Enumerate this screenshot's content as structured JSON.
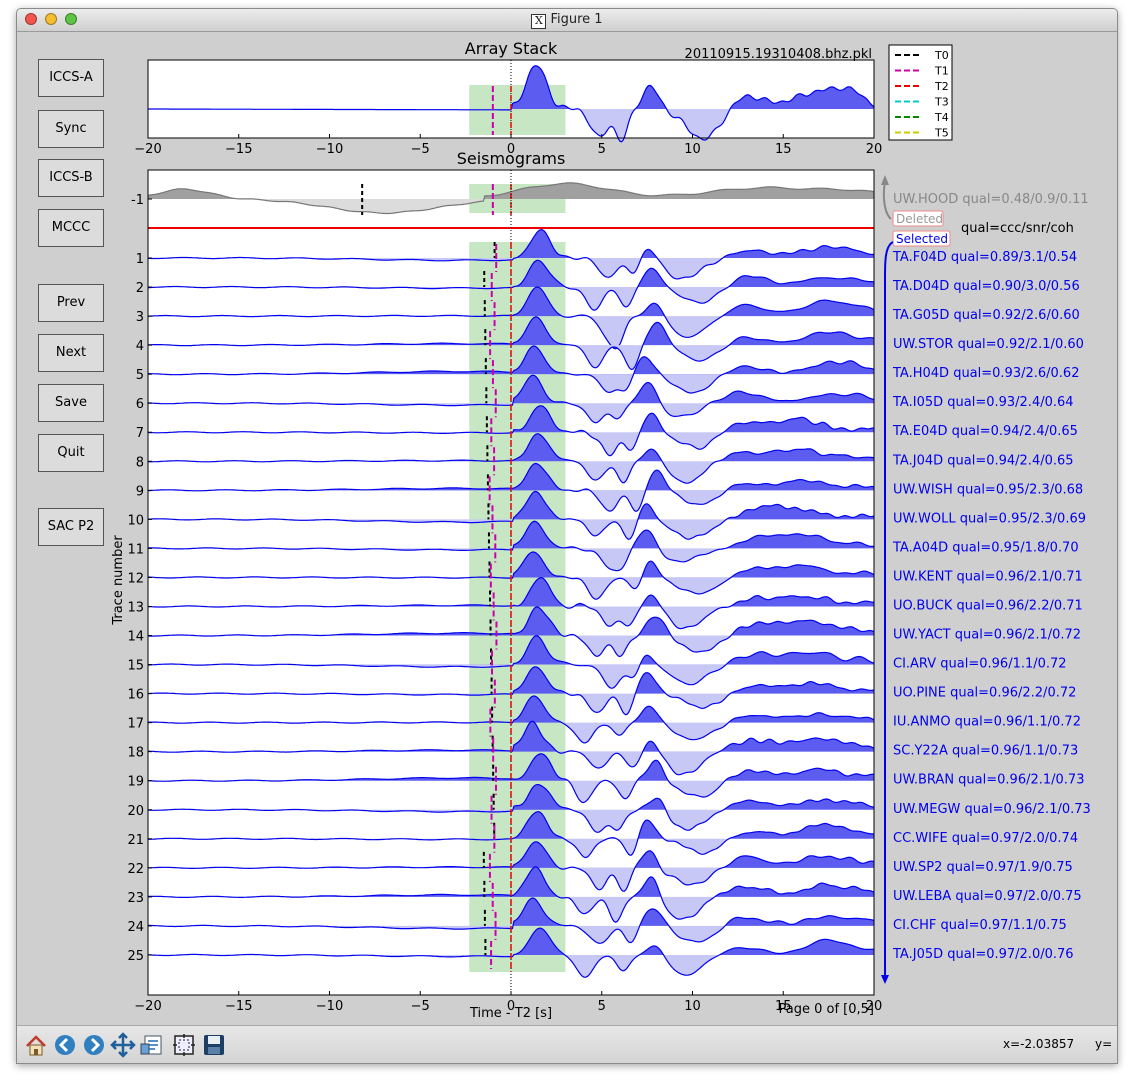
{
  "window": {
    "title": "Figure 1"
  },
  "buttons": [
    {
      "label": "ICCS-A"
    },
    {
      "label": "Sync"
    },
    {
      "label": "ICCS-B"
    },
    {
      "label": "MCCC"
    },
    {
      "label": "Prev"
    },
    {
      "label": "Next"
    },
    {
      "label": "Save"
    },
    {
      "label": "Quit"
    },
    {
      "label": "SAC P2"
    }
  ],
  "stack": {
    "title": "Array Stack",
    "filename": "20110915.19310408.bhz.pkl",
    "xticks": [
      "−20",
      "−15",
      "−10",
      "−5",
      "0",
      "5",
      "10",
      "15",
      "20"
    ]
  },
  "legend": [
    "T0",
    "T1",
    "T2",
    "T3",
    "T4",
    "T5"
  ],
  "seismograms": {
    "title": "Seismograms",
    "ylabel": "Trace number",
    "xlabel": "Time - T2 [s]",
    "page": "Page 0 of [0,5]",
    "xticks": [
      "−20",
      "−15",
      "−10",
      "−5",
      "0",
      "5",
      "10",
      "15",
      "20"
    ],
    "deleted_label": "Deleted",
    "selected_label": "Selected",
    "qual_header": "qual=ccc/snr/coh",
    "deleted": [
      {
        "num": "-1",
        "text": "UW.HOOD   qual=0.48/0.9/0.11"
      }
    ],
    "traces": [
      {
        "num": "1",
        "text": "TA.F04D   qual=0.89/3.1/0.54"
      },
      {
        "num": "2",
        "text": "TA.D04D   qual=0.90/3.0/0.56"
      },
      {
        "num": "3",
        "text": "TA.G05D   qual=0.92/2.6/0.60"
      },
      {
        "num": "4",
        "text": "UW.STOR   qual=0.92/2.1/0.60"
      },
      {
        "num": "5",
        "text": "TA.H04D   qual=0.93/2.6/0.62"
      },
      {
        "num": "6",
        "text": "TA.I05D   qual=0.93/2.4/0.64"
      },
      {
        "num": "7",
        "text": "TA.E04D   qual=0.94/2.4/0.65"
      },
      {
        "num": "8",
        "text": "TA.J04D   qual=0.94/2.4/0.65"
      },
      {
        "num": "9",
        "text": "UW.WISH   qual=0.95/2.3/0.68"
      },
      {
        "num": "10",
        "text": "UW.WOLL   qual=0.95/2.3/0.69"
      },
      {
        "num": "11",
        "text": "TA.A04D   qual=0.95/1.8/0.70"
      },
      {
        "num": "12",
        "text": "UW.KENT   qual=0.96/2.1/0.71"
      },
      {
        "num": "13",
        "text": "UO.BUCK   qual=0.96/2.2/0.71"
      },
      {
        "num": "14",
        "text": "UW.YACT   qual=0.96/2.1/0.72"
      },
      {
        "num": "15",
        "text": "CI.ARV    qual=0.96/1.1/0.72"
      },
      {
        "num": "16",
        "text": "UO.PINE   qual=0.96/2.2/0.72"
      },
      {
        "num": "17",
        "text": "IU.ANMO   qual=0.96/1.1/0.72"
      },
      {
        "num": "18",
        "text": "SC.Y22A   qual=0.96/1.1/0.73"
      },
      {
        "num": "19",
        "text": "UW.BRAN   qual=0.96/2.1/0.73"
      },
      {
        "num": "20",
        "text": "UW.MEGW   qual=0.96/2.1/0.73"
      },
      {
        "num": "21",
        "text": "CC.WIFE   qual=0.97/2.0/0.74"
      },
      {
        "num": "22",
        "text": "UW.SP2    qual=0.97/1.9/0.75"
      },
      {
        "num": "23",
        "text": "UW.LEBA   qual=0.97/2.0/0.75"
      },
      {
        "num": "24",
        "text": "CI.CHF    qual=0.97/1.1/0.75"
      },
      {
        "num": "25",
        "text": "TA.J05D   qual=0.97/2.0/0.76"
      }
    ]
  },
  "toolbar": {
    "icons": [
      "home-icon",
      "back-icon",
      "forward-icon",
      "pan-icon",
      "subplots-icon",
      "zoom-rect-icon",
      "save-icon"
    ],
    "coord": "x=-2.03857",
    "coord_y": "y="
  },
  "colors": {
    "trace": "#0000ee",
    "fill_pos": "#5c5cf0",
    "fill_neg": "#c8c8f6",
    "window_fill": "#a9d9a4",
    "deleted_trace": "#777777",
    "deleted_fill": "#a0a0a0",
    "red": "#ee0000",
    "magenta": "#cc00aa",
    "black": "#000000"
  }
}
